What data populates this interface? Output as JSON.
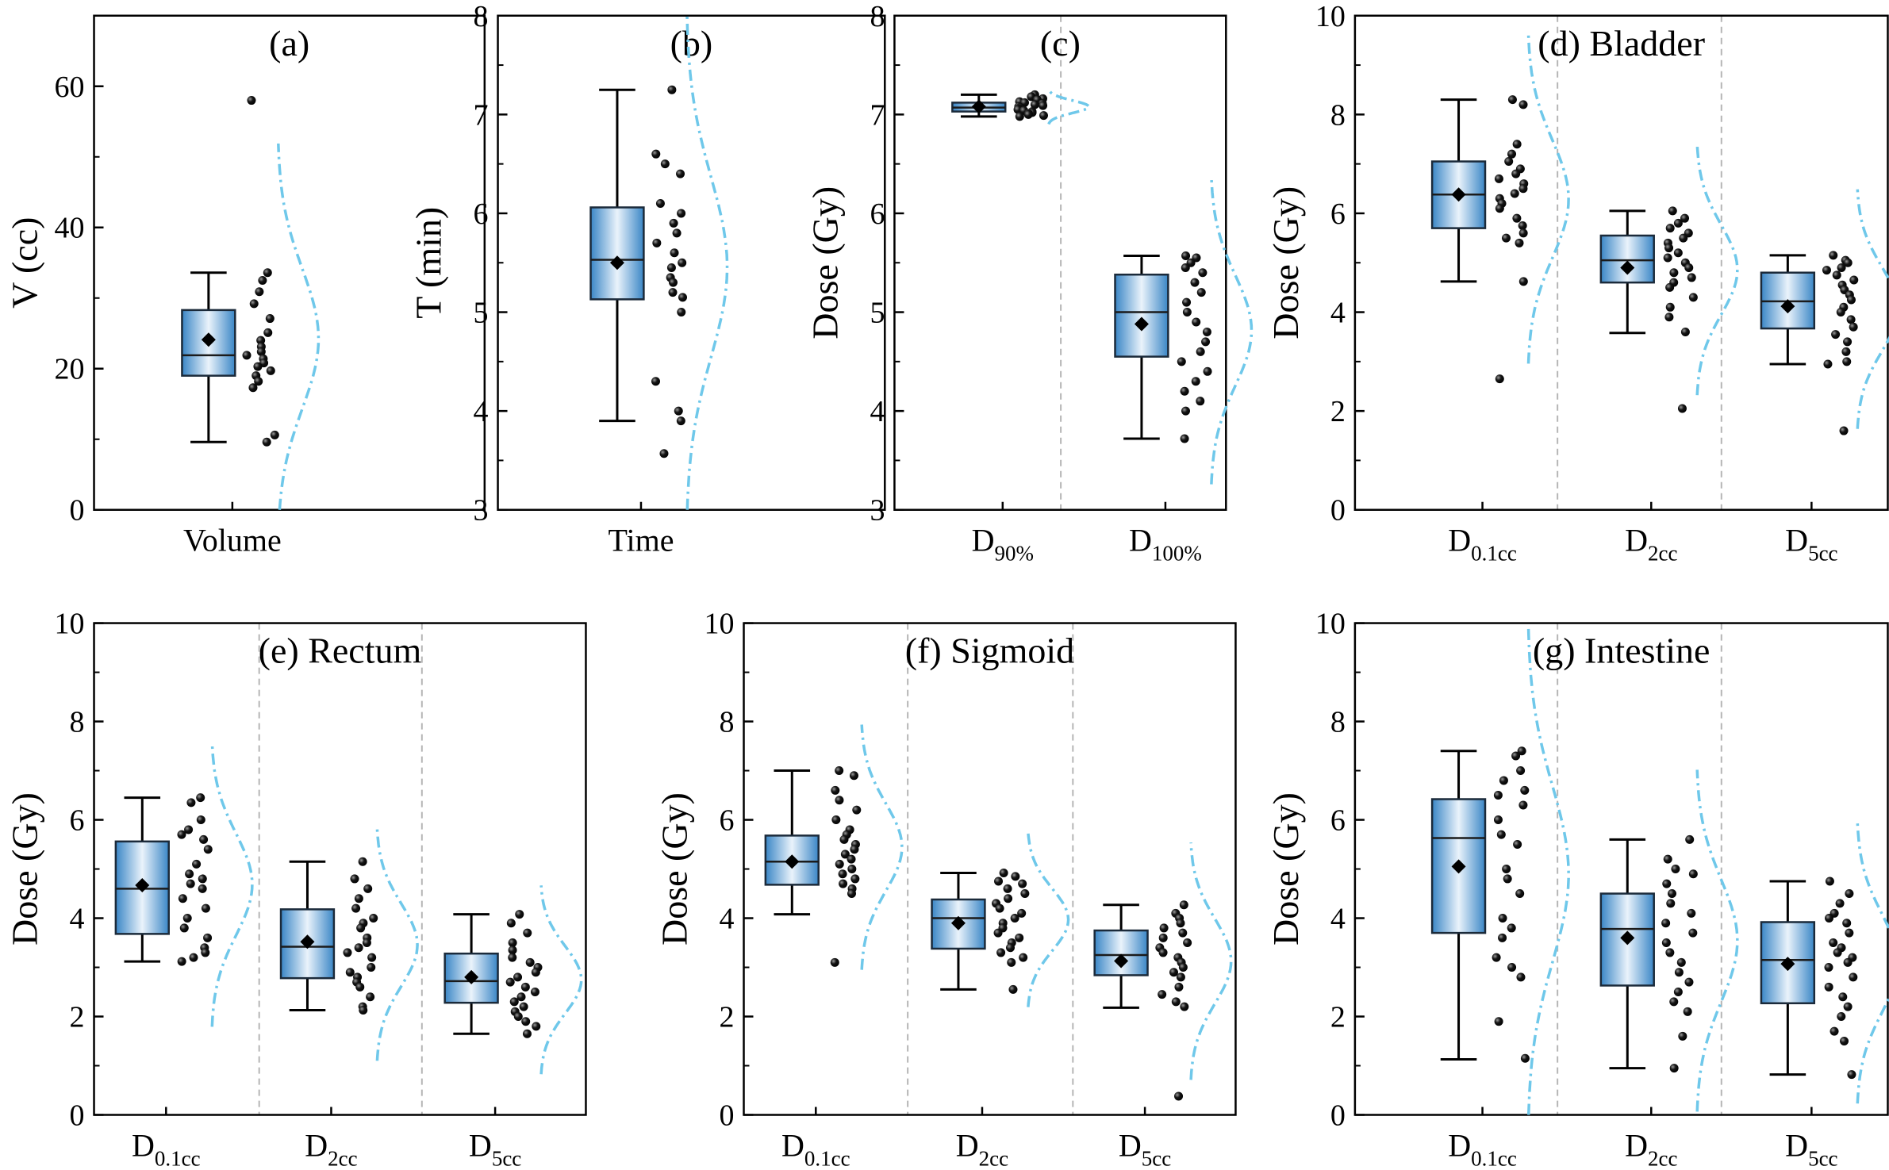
{
  "figure": {
    "style": {
      "box_gradient": [
        "#3a86c6",
        "#eaf3fb"
      ],
      "box_stroke": "#1b2a3a",
      "whisker_color": "#000000",
      "point_color": "#151515",
      "curve_color": "#6fc8ea",
      "divider_color": "#b5b5b5",
      "frame_color": "#000000"
    }
  },
  "chart_data": [
    {
      "id": "a",
      "type": "box",
      "title": "(a)",
      "ylabel": "V (cc)",
      "ylim": [
        0,
        70
      ],
      "yticks": [
        0,
        20,
        40,
        60
      ],
      "groups": [
        {
          "label": "Volume",
          "sub": "",
          "stats": {
            "min": 9.6,
            "q1": 19.0,
            "median": 21.9,
            "q3": 28.3,
            "max": 33.6,
            "mean": 24.1
          },
          "points": [
            58,
            33.6,
            32.5,
            30.9,
            29.2,
            27.1,
            25.1,
            24.0,
            23.1,
            22.4,
            21.9,
            21.4,
            20.8,
            20.3,
            19.7,
            19.0,
            18.2,
            17.3,
            10.6,
            9.6
          ]
        }
      ]
    },
    {
      "id": "b",
      "type": "box",
      "title": "(b)",
      "ylabel": "T (min)",
      "ylim": [
        3,
        8
      ],
      "yticks": [
        3,
        4,
        5,
        6,
        7,
        8
      ],
      "groups": [
        {
          "label": "Time",
          "sub": "",
          "stats": {
            "min": 3.9,
            "q1": 5.13,
            "median": 5.53,
            "q3": 6.06,
            "max": 7.25,
            "mean": 5.5
          },
          "points": [
            7.25,
            6.6,
            6.5,
            6.4,
            6.1,
            6.0,
            5.9,
            5.8,
            5.7,
            5.6,
            5.5,
            5.45,
            5.35,
            5.3,
            5.2,
            5.15,
            5.0,
            4.3,
            4.0,
            3.9,
            3.57
          ]
        }
      ]
    },
    {
      "id": "c",
      "type": "box",
      "title": "(c)",
      "ylabel": "Dose (Gy)",
      "ylim": [
        3,
        8
      ],
      "yticks": [
        3,
        4,
        5,
        6,
        7,
        8
      ],
      "groups": [
        {
          "label": "D",
          "sub": "90%",
          "stats": {
            "min": 6.98,
            "q1": 7.03,
            "median": 7.07,
            "q3": 7.12,
            "max": 7.2,
            "mean": 7.08
          },
          "points": [
            7.2,
            7.18,
            7.16,
            7.15,
            7.13,
            7.12,
            7.11,
            7.1,
            7.09,
            7.08,
            7.07,
            7.06,
            7.05,
            7.04,
            7.03,
            7.02,
            7.01,
            7.0,
            6.99,
            6.98
          ]
        },
        {
          "label": "D",
          "sub": "100%",
          "stats": {
            "min": 3.72,
            "q1": 4.55,
            "median": 5.0,
            "q3": 5.38,
            "max": 5.57,
            "mean": 4.88
          },
          "points": [
            5.57,
            5.55,
            5.5,
            5.45,
            5.4,
            5.3,
            5.2,
            5.1,
            5.0,
            4.9,
            4.8,
            4.7,
            4.6,
            4.5,
            4.4,
            4.3,
            4.2,
            4.1,
            4.0,
            3.72
          ]
        }
      ]
    },
    {
      "id": "d",
      "type": "box",
      "title": "(d) Bladder",
      "ylabel": "Dose (Gy)",
      "ylim": [
        0,
        10
      ],
      "yticks": [
        0,
        2,
        4,
        6,
        8,
        10
      ],
      "groups": [
        {
          "label": "D",
          "sub": "0.1cc",
          "stats": {
            "min": 4.62,
            "q1": 5.7,
            "median": 6.38,
            "q3": 7.05,
            "max": 8.3,
            "mean": 6.38
          },
          "points": [
            8.3,
            8.2,
            7.4,
            7.2,
            7.05,
            6.9,
            6.8,
            6.7,
            6.6,
            6.5,
            6.4,
            6.3,
            6.2,
            6.1,
            5.9,
            5.75,
            5.6,
            5.5,
            5.4,
            4.62,
            2.65
          ]
        },
        {
          "label": "D",
          "sub": "2cc",
          "stats": {
            "min": 3.58,
            "q1": 4.6,
            "median": 5.05,
            "q3": 5.55,
            "max": 6.05,
            "mean": 4.9
          },
          "points": [
            6.05,
            5.9,
            5.8,
            5.7,
            5.6,
            5.5,
            5.4,
            5.3,
            5.2,
            5.1,
            5.0,
            4.9,
            4.8,
            4.7,
            4.6,
            4.5,
            4.3,
            4.1,
            3.9,
            3.6,
            2.05
          ]
        },
        {
          "label": "D",
          "sub": "5cc",
          "stats": {
            "min": 2.95,
            "q1": 3.67,
            "median": 4.22,
            "q3": 4.8,
            "max": 5.15,
            "mean": 4.12
          },
          "points": [
            5.15,
            5.05,
            5.0,
            4.9,
            4.85,
            4.75,
            4.65,
            4.55,
            4.45,
            4.35,
            4.25,
            4.1,
            4.0,
            3.85,
            3.7,
            3.55,
            3.4,
            3.2,
            3.0,
            2.95,
            1.6
          ]
        }
      ]
    },
    {
      "id": "e",
      "type": "box",
      "title": "(e) Rectum",
      "ylabel": "Dose (Gy)",
      "ylim": [
        0,
        10
      ],
      "yticks": [
        0,
        2,
        4,
        6,
        8,
        10
      ],
      "groups": [
        {
          "label": "D",
          "sub": "0.1cc",
          "stats": {
            "min": 3.12,
            "q1": 3.68,
            "median": 4.6,
            "q3": 5.56,
            "max": 6.45,
            "mean": 4.67
          },
          "points": [
            6.45,
            6.35,
            6.0,
            5.8,
            5.7,
            5.6,
            5.4,
            5.1,
            4.9,
            4.8,
            4.7,
            4.6,
            4.4,
            4.2,
            4.0,
            3.8,
            3.6,
            3.4,
            3.3,
            3.2,
            3.12
          ]
        },
        {
          "label": "D",
          "sub": "2cc",
          "stats": {
            "min": 2.13,
            "q1": 2.78,
            "median": 3.42,
            "q3": 4.18,
            "max": 5.15,
            "mean": 3.52
          },
          "points": [
            5.15,
            4.8,
            4.6,
            4.4,
            4.2,
            4.0,
            3.9,
            3.8,
            3.6,
            3.5,
            3.4,
            3.3,
            3.2,
            3.0,
            2.9,
            2.8,
            2.7,
            2.6,
            2.4,
            2.2,
            2.13
          ]
        },
        {
          "label": "D",
          "sub": "5cc",
          "stats": {
            "min": 1.65,
            "q1": 2.28,
            "median": 2.72,
            "q3": 3.28,
            "max": 4.08,
            "mean": 2.8
          },
          "points": [
            4.08,
            3.9,
            3.7,
            3.5,
            3.35,
            3.2,
            3.1,
            3.0,
            2.9,
            2.8,
            2.7,
            2.6,
            2.5,
            2.4,
            2.3,
            2.2,
            2.1,
            2.0,
            1.9,
            1.8,
            1.65
          ]
        }
      ]
    },
    {
      "id": "f",
      "type": "box",
      "title": "(f) Sigmoid",
      "ylabel": "Dose (Gy)",
      "ylim": [
        0,
        10
      ],
      "yticks": [
        0,
        2,
        4,
        6,
        8,
        10
      ],
      "groups": [
        {
          "label": "D",
          "sub": "0.1cc",
          "stats": {
            "min": 4.08,
            "q1": 4.68,
            "median": 5.15,
            "q3": 5.68,
            "max": 7.0,
            "mean": 5.15
          },
          "points": [
            7.0,
            6.9,
            6.6,
            6.4,
            6.2,
            6.0,
            5.8,
            5.7,
            5.6,
            5.5,
            5.4,
            5.3,
            5.2,
            5.1,
            5.0,
            4.9,
            4.8,
            4.7,
            4.6,
            4.5,
            3.1
          ]
        },
        {
          "label": "D",
          "sub": "2cc",
          "stats": {
            "min": 2.55,
            "q1": 3.38,
            "median": 4.0,
            "q3": 4.38,
            "max": 4.92,
            "mean": 3.9
          },
          "points": [
            4.92,
            4.85,
            4.75,
            4.7,
            4.6,
            4.5,
            4.4,
            4.3,
            4.2,
            4.1,
            4.0,
            3.9,
            3.8,
            3.7,
            3.6,
            3.5,
            3.4,
            3.3,
            3.2,
            3.1,
            2.55
          ]
        },
        {
          "label": "D",
          "sub": "5cc",
          "stats": {
            "min": 2.18,
            "q1": 2.84,
            "median": 3.25,
            "q3": 3.75,
            "max": 4.27,
            "mean": 3.13
          },
          "points": [
            4.27,
            4.1,
            4.0,
            3.9,
            3.8,
            3.7,
            3.6,
            3.5,
            3.4,
            3.3,
            3.2,
            3.1,
            3.0,
            2.9,
            2.8,
            2.6,
            2.45,
            2.3,
            2.2,
            0.38
          ]
        }
      ]
    },
    {
      "id": "g",
      "type": "box",
      "title": "(g) Intestine",
      "ylabel": "Dose (Gy)",
      "ylim": [
        0,
        10
      ],
      "yticks": [
        0,
        2,
        4,
        6,
        8,
        10
      ],
      "groups": [
        {
          "label": "D",
          "sub": "0.1cc",
          "stats": {
            "min": 1.13,
            "q1": 3.7,
            "median": 5.63,
            "q3": 6.42,
            "max": 7.4,
            "mean": 5.05
          },
          "points": [
            7.4,
            7.3,
            7.0,
            6.8,
            6.6,
            6.5,
            6.3,
            6.0,
            5.7,
            5.5,
            5.0,
            4.8,
            4.5,
            4.0,
            3.8,
            3.6,
            3.2,
            3.0,
            2.8,
            1.9,
            1.15
          ]
        },
        {
          "label": "D",
          "sub": "2cc",
          "stats": {
            "min": 0.95,
            "q1": 2.63,
            "median": 3.78,
            "q3": 4.5,
            "max": 5.6,
            "mean": 3.6
          },
          "points": [
            5.6,
            5.2,
            5.0,
            4.9,
            4.7,
            4.5,
            4.3,
            4.1,
            3.9,
            3.7,
            3.5,
            3.3,
            3.1,
            2.9,
            2.7,
            2.5,
            2.3,
            2.1,
            1.6,
            0.95
          ]
        },
        {
          "label": "D",
          "sub": "5cc",
          "stats": {
            "min": 0.82,
            "q1": 2.27,
            "median": 3.15,
            "q3": 3.92,
            "max": 4.75,
            "mean": 3.07
          },
          "points": [
            4.75,
            4.5,
            4.3,
            4.1,
            4.0,
            3.9,
            3.7,
            3.5,
            3.4,
            3.3,
            3.2,
            3.1,
            3.0,
            2.8,
            2.6,
            2.4,
            2.2,
            2.0,
            1.7,
            1.5,
            0.82
          ]
        }
      ]
    }
  ]
}
